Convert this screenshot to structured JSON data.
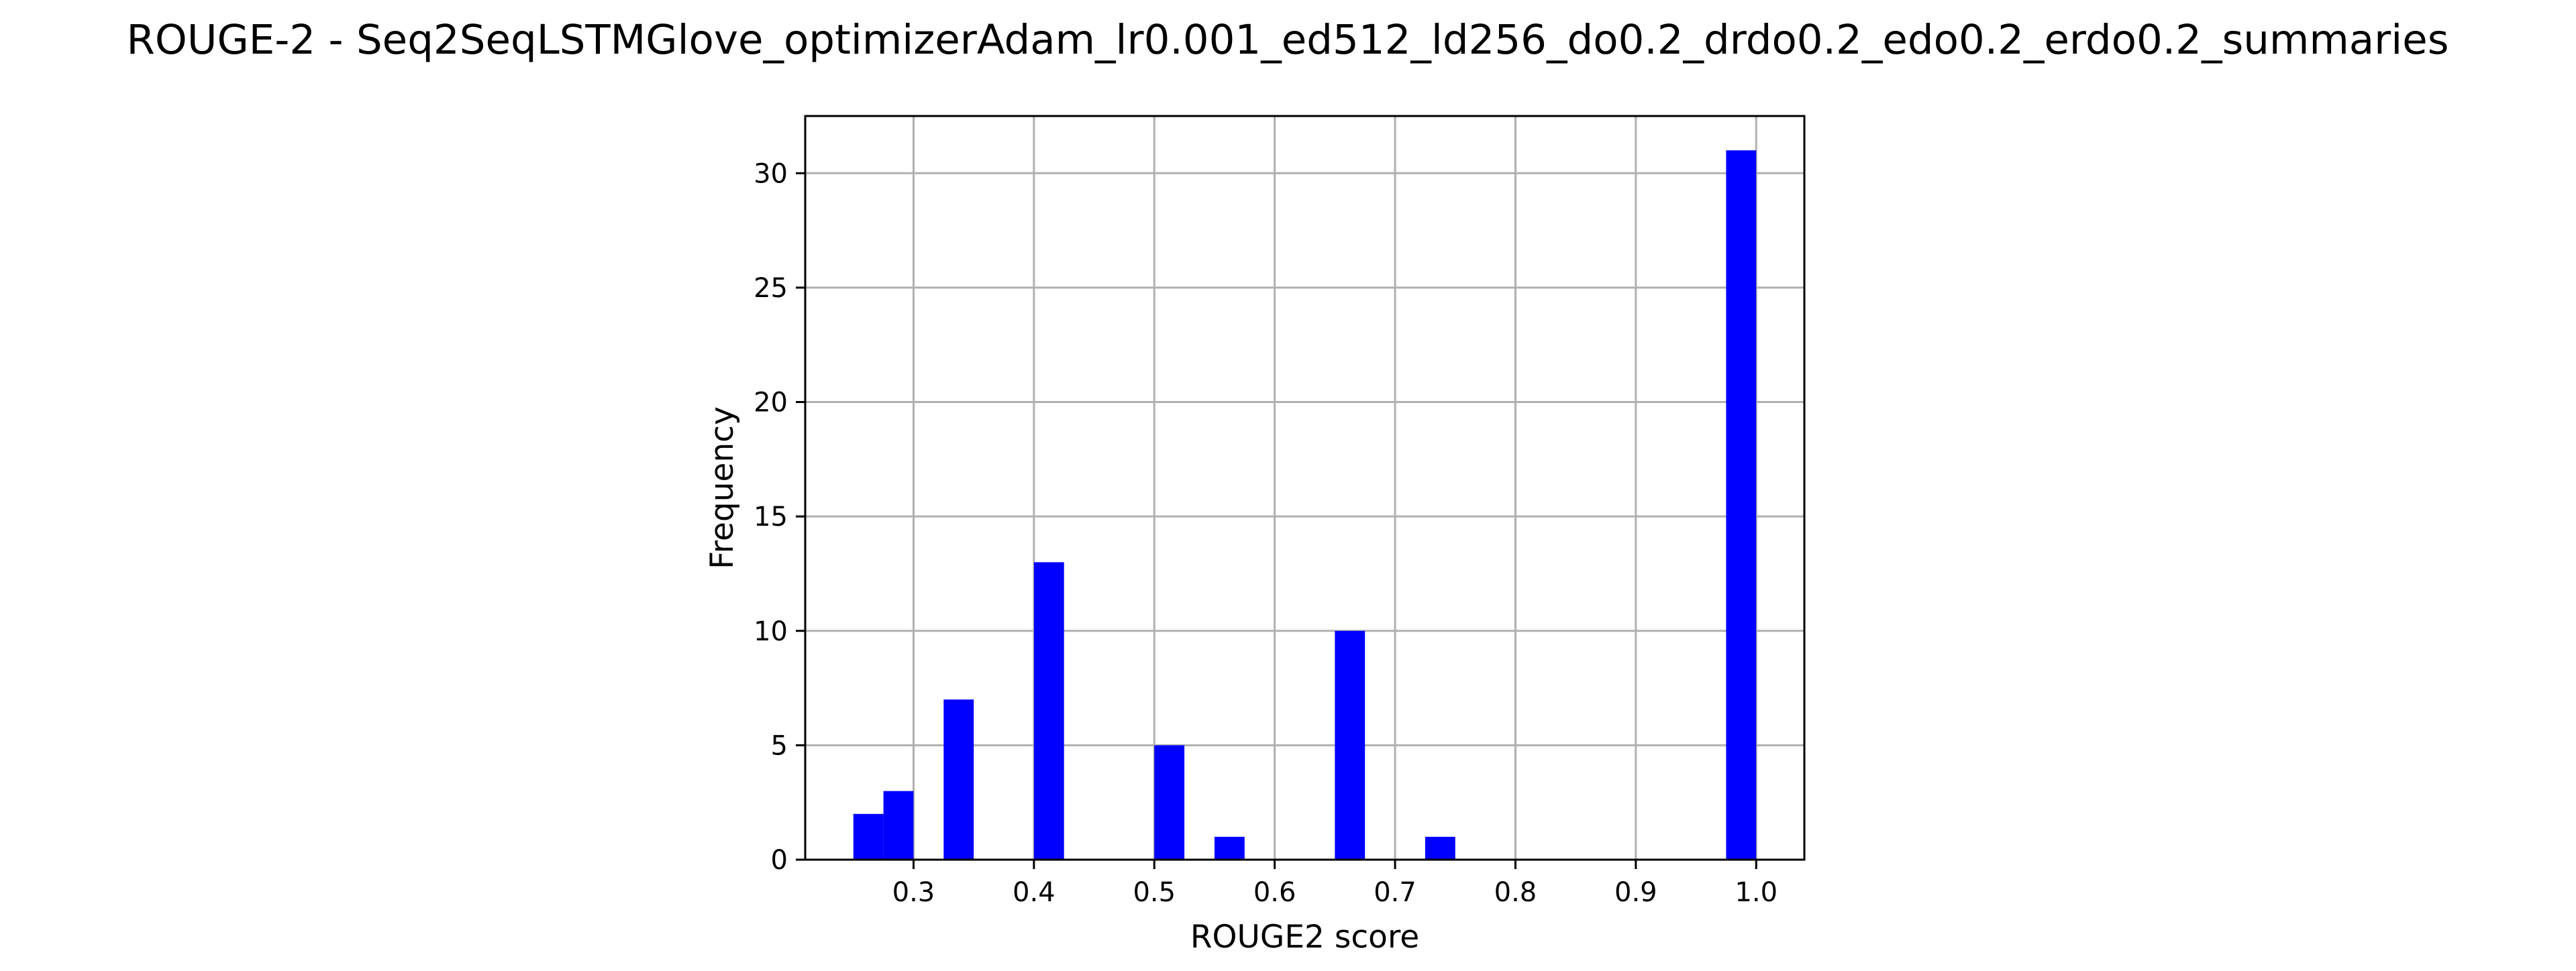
{
  "chart_data": {
    "type": "bar",
    "title": "ROUGE-2 - Seq2SeqLSTMGlove_optimizerAdam_lr0.001_ed512_ld256_do0.2_drdo0.2_edo0.2_erdo0.2_summaries",
    "xlabel": "ROUGE2 score",
    "ylabel": "Frequency",
    "xlim": [
      0.21,
      1.04
    ],
    "ylim": [
      0,
      32.5
    ],
    "xticks": [
      "0.3",
      "0.4",
      "0.5",
      "0.6",
      "0.7",
      "0.8",
      "0.9",
      "1.0"
    ],
    "yticks": [
      "0",
      "5",
      "10",
      "15",
      "20",
      "25",
      "30"
    ],
    "bin_width": 0.025,
    "bins": [
      {
        "x0": 0.25,
        "x1": 0.275,
        "count": 2
      },
      {
        "x0": 0.275,
        "x1": 0.3,
        "count": 3
      },
      {
        "x0": 0.325,
        "x1": 0.35,
        "count": 7
      },
      {
        "x0": 0.4,
        "x1": 0.425,
        "count": 13
      },
      {
        "x0": 0.5,
        "x1": 0.525,
        "count": 5
      },
      {
        "x0": 0.55,
        "x1": 0.575,
        "count": 1
      },
      {
        "x0": 0.65,
        "x1": 0.675,
        "count": 10
      },
      {
        "x0": 0.725,
        "x1": 0.75,
        "count": 1
      },
      {
        "x0": 0.975,
        "x1": 1.0,
        "count": 31
      }
    ],
    "grid": true,
    "bar_color": "#0000ff"
  }
}
